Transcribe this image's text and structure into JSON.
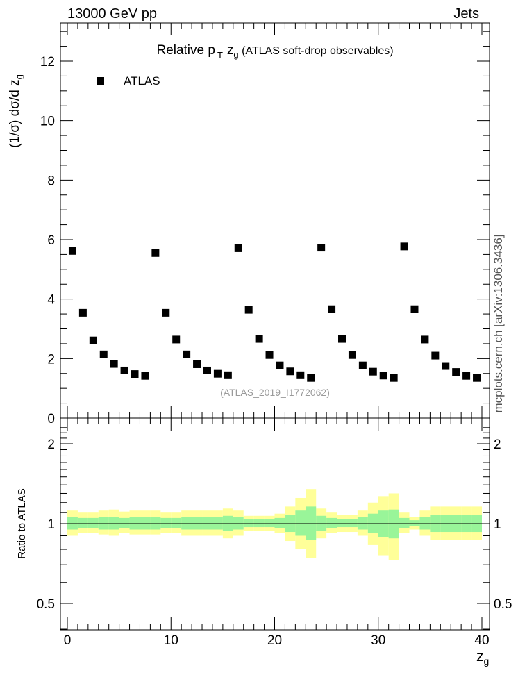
{
  "header": {
    "left": "13000 GeV pp",
    "right": "Jets",
    "side": "mcplots.cern.ch [arXiv:1306.3436]"
  },
  "chart_data": [
    {
      "type": "scatter",
      "title_main": "Relative p",
      "title_sub": "T",
      "title_var": "z",
      "title_var_sub": "g",
      "title_rest": " (ATLAS soft-drop observables)",
      "ylabel": "(1/σ) dσ/d z",
      "ylabel_sub": "g",
      "legend": "ATLAS",
      "legend_position": "top-left",
      "watermark": "(ATLAS_2019_I1772062)",
      "xlim": [
        0,
        40
      ],
      "ylim": [
        0,
        13.3
      ],
      "yticks": [
        0,
        2,
        4,
        6,
        8,
        10,
        12
      ],
      "ytick_labels": [
        "0",
        "2",
        "4",
        "6",
        "8",
        "10",
        "12"
      ],
      "series": [
        {
          "name": "ATLAS",
          "x": [
            0.5,
            1.5,
            2.5,
            3.5,
            4.5,
            5.5,
            6.5,
            7.5,
            8.5,
            9.5,
            10.5,
            11.5,
            12.5,
            13.5,
            14.5,
            15.5,
            16.5,
            17.5,
            18.5,
            19.5,
            20.5,
            21.5,
            22.5,
            23.5,
            24.5,
            25.5,
            26.5,
            27.5,
            28.5,
            29.5,
            30.5,
            31.5,
            32.5,
            33.5,
            34.5,
            35.5,
            36.5,
            37.5,
            38.5,
            39.5
          ],
          "y": [
            5.62,
            3.54,
            2.61,
            2.14,
            1.82,
            1.6,
            1.48,
            1.42,
            5.55,
            3.54,
            2.64,
            2.14,
            1.81,
            1.6,
            1.49,
            1.44,
            5.71,
            3.64,
            2.66,
            2.12,
            1.77,
            1.57,
            1.44,
            1.35,
            5.73,
            3.66,
            2.66,
            2.12,
            1.77,
            1.56,
            1.43,
            1.35,
            5.77,
            3.66,
            2.64,
            2.1,
            1.75,
            1.55,
            1.42,
            1.35
          ]
        }
      ]
    },
    {
      "type": "area",
      "ylabel": "Ratio to ATLAS",
      "xlabel": "z",
      "xlabel_sub": "g",
      "xlim": [
        0,
        40
      ],
      "ylim": [
        0.35,
        2.4
      ],
      "yscale": "log",
      "yticks": [
        0.5,
        1,
        2
      ],
      "ytick_labels": [
        "0.5",
        "1",
        "2"
      ],
      "xticks": [
        0,
        10,
        20,
        30,
        40
      ],
      "xtick_labels": [
        "0",
        "10",
        "20",
        "30",
        "40"
      ],
      "bands": {
        "x_edges": [
          0,
          1,
          2,
          3,
          4,
          5,
          6,
          7,
          8,
          9,
          10,
          11,
          12,
          13,
          14,
          15,
          16,
          17,
          18,
          19,
          20,
          21,
          22,
          23,
          24,
          25,
          26,
          27,
          28,
          29,
          30,
          31,
          32,
          33,
          34,
          35,
          36,
          37,
          38,
          39,
          40
        ],
        "green_up": [
          1.06,
          1.05,
          1.05,
          1.06,
          1.06,
          1.05,
          1.06,
          1.06,
          1.06,
          1.05,
          1.05,
          1.06,
          1.06,
          1.06,
          1.06,
          1.07,
          1.06,
          1.04,
          1.04,
          1.04,
          1.05,
          1.08,
          1.12,
          1.16,
          1.07,
          1.05,
          1.04,
          1.04,
          1.06,
          1.09,
          1.12,
          1.13,
          1.05,
          1.03,
          1.06,
          1.08,
          1.08,
          1.08,
          1.08,
          1.08
        ],
        "green_dn": [
          0.95,
          0.96,
          0.96,
          0.95,
          0.95,
          0.96,
          0.95,
          0.95,
          0.95,
          0.96,
          0.96,
          0.95,
          0.95,
          0.95,
          0.95,
          0.94,
          0.95,
          0.97,
          0.97,
          0.97,
          0.96,
          0.93,
          0.9,
          0.87,
          0.94,
          0.96,
          0.97,
          0.97,
          0.95,
          0.92,
          0.89,
          0.88,
          0.96,
          0.98,
          0.95,
          0.93,
          0.93,
          0.93,
          0.93,
          0.93
        ],
        "yellow_up": [
          1.12,
          1.1,
          1.1,
          1.12,
          1.13,
          1.11,
          1.12,
          1.12,
          1.12,
          1.1,
          1.1,
          1.12,
          1.12,
          1.12,
          1.12,
          1.14,
          1.12,
          1.07,
          1.07,
          1.07,
          1.09,
          1.16,
          1.25,
          1.35,
          1.14,
          1.1,
          1.08,
          1.08,
          1.12,
          1.2,
          1.27,
          1.3,
          1.1,
          1.06,
          1.12,
          1.16,
          1.16,
          1.16,
          1.16,
          1.16
        ],
        "yellow_dn": [
          0.9,
          0.92,
          0.92,
          0.91,
          0.9,
          0.92,
          0.91,
          0.91,
          0.91,
          0.92,
          0.92,
          0.9,
          0.9,
          0.9,
          0.9,
          0.88,
          0.9,
          0.94,
          0.94,
          0.94,
          0.92,
          0.86,
          0.8,
          0.74,
          0.88,
          0.92,
          0.93,
          0.93,
          0.9,
          0.83,
          0.76,
          0.73,
          0.92,
          0.95,
          0.9,
          0.87,
          0.87,
          0.87,
          0.87,
          0.87
        ]
      }
    }
  ]
}
